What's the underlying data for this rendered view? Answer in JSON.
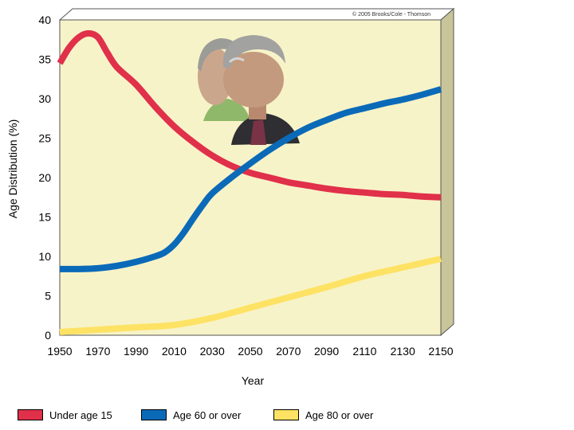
{
  "chart_data": {
    "type": "line",
    "credit": "© 2005 Brooks/Cole - Thomson",
    "xlabel": "Year",
    "ylabel": "Age Distribution (%)",
    "xlim": [
      1950,
      2150
    ],
    "ylim": [
      0,
      40
    ],
    "x_ticks": [
      1950,
      1970,
      1990,
      2010,
      2030,
      2050,
      2070,
      2090,
      2110,
      2130,
      2150
    ],
    "y_ticks": [
      0,
      5,
      10,
      15,
      20,
      25,
      30,
      35,
      40
    ],
    "grid": false,
    "legend_position": "bottom",
    "background_color": "#f7f3c8",
    "series": [
      {
        "name": "Under age 15",
        "color": "#e0304a",
        "points": [
          [
            1950,
            34.5
          ],
          [
            1955,
            36.5
          ],
          [
            1960,
            37.8
          ],
          [
            1965,
            38.3
          ],
          [
            1970,
            37.8
          ],
          [
            1975,
            35.8
          ],
          [
            1980,
            34
          ],
          [
            1990,
            31.8
          ],
          [
            2000,
            29
          ],
          [
            2010,
            26.5
          ],
          [
            2020,
            24.5
          ],
          [
            2030,
            22.8
          ],
          [
            2040,
            21.5
          ],
          [
            2050,
            20.6
          ],
          [
            2060,
            20
          ],
          [
            2070,
            19.4
          ],
          [
            2080,
            19
          ],
          [
            2090,
            18.6
          ],
          [
            2100,
            18.3
          ],
          [
            2110,
            18.1
          ],
          [
            2120,
            17.9
          ],
          [
            2130,
            17.8
          ],
          [
            2140,
            17.6
          ],
          [
            2150,
            17.5
          ]
        ]
      },
      {
        "name": "Age 60 or over",
        "color": "#0a6ab8",
        "points": [
          [
            1950,
            8.4
          ],
          [
            1960,
            8.4
          ],
          [
            1970,
            8.5
          ],
          [
            1980,
            8.8
          ],
          [
            1990,
            9.3
          ],
          [
            2000,
            10
          ],
          [
            2005,
            10.5
          ],
          [
            2010,
            11.5
          ],
          [
            2015,
            13
          ],
          [
            2020,
            14.8
          ],
          [
            2025,
            16.5
          ],
          [
            2030,
            18
          ],
          [
            2040,
            20
          ],
          [
            2050,
            21.8
          ],
          [
            2060,
            23.5
          ],
          [
            2070,
            25
          ],
          [
            2080,
            26.3
          ],
          [
            2090,
            27.3
          ],
          [
            2100,
            28.2
          ],
          [
            2110,
            28.8
          ],
          [
            2120,
            29.4
          ],
          [
            2130,
            29.9
          ],
          [
            2140,
            30.5
          ],
          [
            2150,
            31.2
          ]
        ]
      },
      {
        "name": "Age 80 or over",
        "color": "#fde264",
        "points": [
          [
            1950,
            0.4
          ],
          [
            1970,
            0.7
          ],
          [
            1990,
            1
          ],
          [
            2010,
            1.3
          ],
          [
            2030,
            2.2
          ],
          [
            2050,
            3.5
          ],
          [
            2070,
            4.8
          ],
          [
            2090,
            6.1
          ],
          [
            2110,
            7.5
          ],
          [
            2130,
            8.6
          ],
          [
            2150,
            9.7
          ]
        ]
      }
    ]
  }
}
